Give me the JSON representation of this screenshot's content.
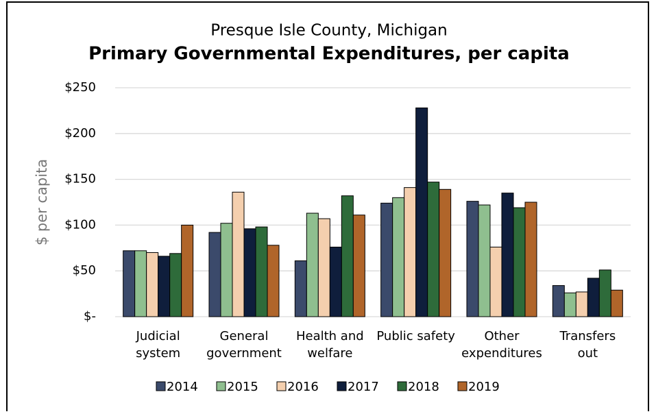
{
  "chart_data": {
    "type": "bar",
    "subtitle": "Presque Isle County, Michigan",
    "title": "Primary Governmental Expenditures, per capita",
    "y_label": "$ per capita",
    "categories": [
      [
        "Judicial",
        "system"
      ],
      [
        "General",
        "government"
      ],
      [
        "Health and",
        "welfare"
      ],
      [
        "Public safety"
      ],
      [
        "Other",
        "expenditures"
      ],
      [
        "Transfers",
        "out"
      ]
    ],
    "series": [
      {
        "name": "2014",
        "color": "#3b4a6b",
        "values": [
          72,
          92,
          61,
          124,
          126,
          34
        ]
      },
      {
        "name": "2015",
        "color": "#8fbf8f",
        "values": [
          72,
          102,
          113,
          130,
          122,
          26
        ]
      },
      {
        "name": "2016",
        "color": "#f4cfae",
        "values": [
          70,
          136,
          107,
          141,
          76,
          27
        ]
      },
      {
        "name": "2017",
        "color": "#0f1e3c",
        "values": [
          66,
          96,
          76,
          228,
          135,
          42
        ]
      },
      {
        "name": "2018",
        "color": "#2e6b3a",
        "values": [
          69,
          98,
          132,
          147,
          119,
          51
        ]
      },
      {
        "name": "2019",
        "color": "#b0652a",
        "values": [
          100,
          78,
          111,
          139,
          125,
          29
        ]
      }
    ],
    "ylim": [
      0,
      250
    ],
    "yticks": [
      {
        "value": 0,
        "label": "$-"
      },
      {
        "value": 50,
        "label": "$50"
      },
      {
        "value": 100,
        "label": "$100"
      },
      {
        "value": 150,
        "label": "$150"
      },
      {
        "value": 200,
        "label": "$200"
      },
      {
        "value": 250,
        "label": "$250"
      }
    ],
    "grid": true,
    "legend": "bottom"
  }
}
